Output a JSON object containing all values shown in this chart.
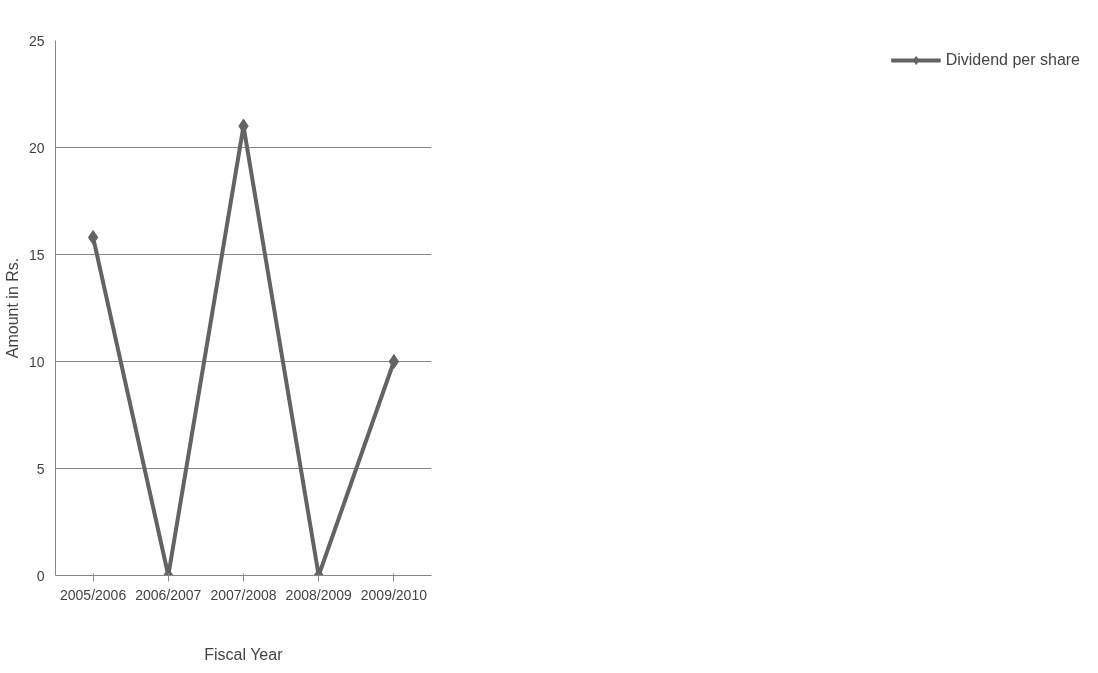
{
  "chart_data": {
    "type": "line",
    "xlabel": "Fiscal Year",
    "ylabel": "Amount in Rs.",
    "categories": [
      "2005/2006",
      "2006/2007",
      "2007/2008",
      "2008/2009",
      "2009/2010"
    ],
    "series": [
      {
        "name": "Dividend per share",
        "color": "#636363",
        "values": [
          15.8,
          0,
          21,
          0,
          10
        ]
      }
    ],
    "ylim": [
      0,
      25
    ],
    "yticks": [
      0,
      5,
      10,
      15,
      20,
      25
    ],
    "grid": "y",
    "legend": "right",
    "marker": "diamond",
    "line_style": "solid"
  }
}
